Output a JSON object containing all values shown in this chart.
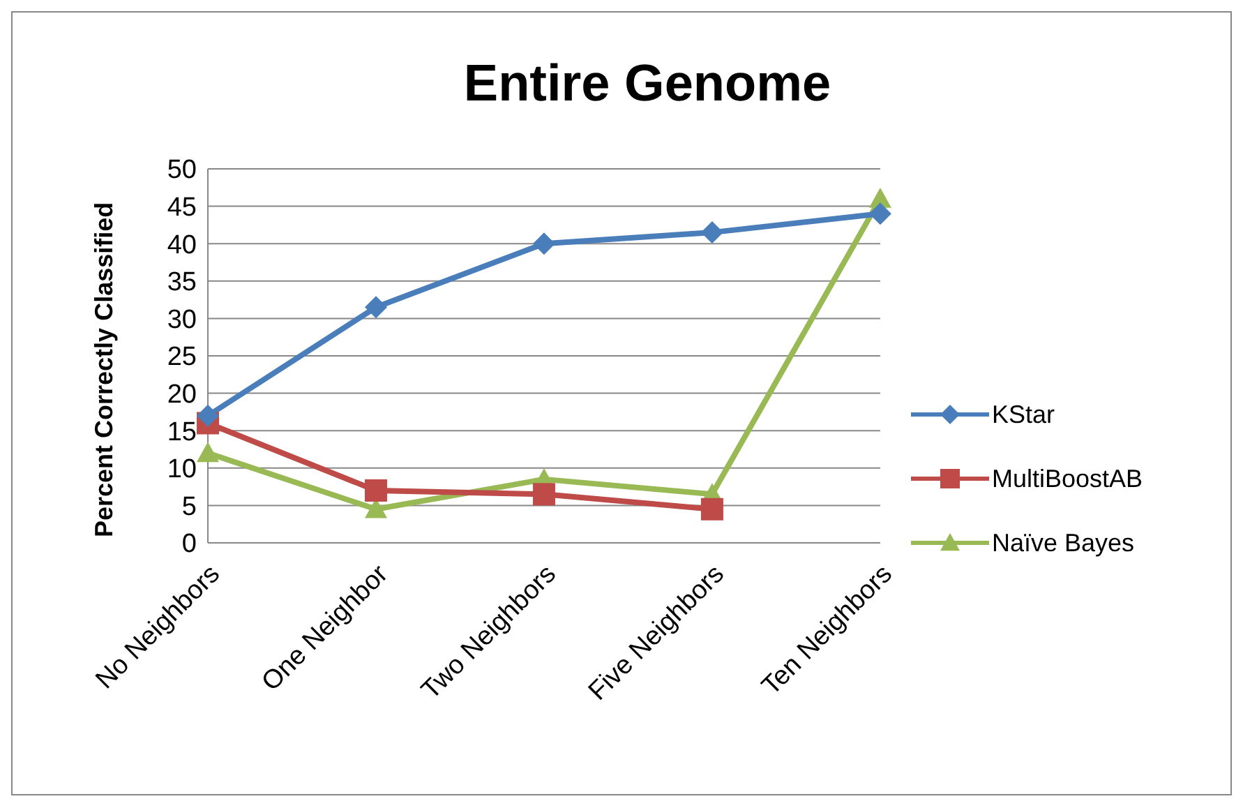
{
  "chart_data": {
    "type": "line",
    "title": "Entire Genome",
    "ylabel": "Percent Correctly Classified",
    "categories": [
      "No Neighbors",
      "One Neighbor",
      "Two Neighbors",
      "Five Neighbors",
      "Ten Neighbors"
    ],
    "series": [
      {
        "name": "KStar",
        "color": "#4a7ebb",
        "marker": "diamond",
        "values": [
          17,
          31.5,
          40,
          41.5,
          44
        ]
      },
      {
        "name": "MultiBoostAB",
        "color": "#be4b48",
        "marker": "square",
        "values": [
          16,
          7,
          6.5,
          4.5,
          null
        ]
      },
      {
        "name": "Naïve Bayes",
        "color": "#98b954",
        "marker": "triangle",
        "values": [
          12,
          4.5,
          8.5,
          6.5,
          46
        ]
      }
    ],
    "ylim": [
      0,
      50
    ],
    "yticks": [
      0,
      5,
      10,
      15,
      20,
      25,
      30,
      35,
      40,
      45,
      50
    ],
    "grid": "y",
    "legend": "right",
    "line_style": "solid"
  }
}
